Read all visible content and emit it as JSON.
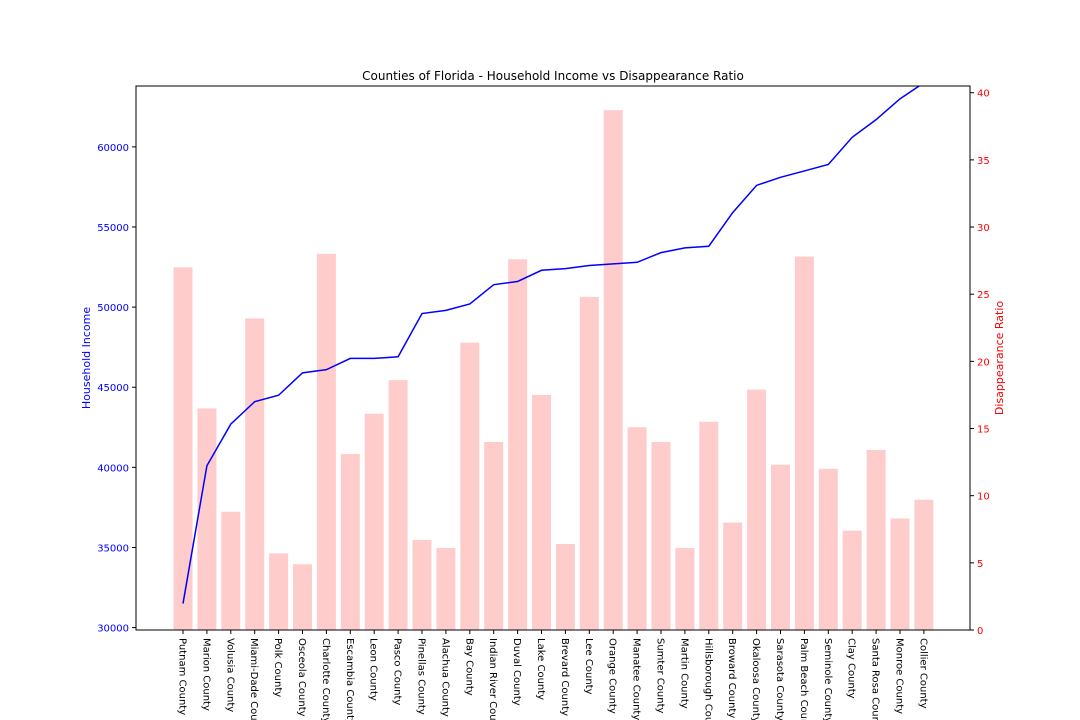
{
  "chart_data": {
    "type": "bar",
    "title": "Counties of Florida - Household Income vs Disappearance Ratio",
    "xlabel": "",
    "ylabel_left": "Household Income",
    "ylabel_right": "Disappearance Ratio",
    "left_color": "#0000ff",
    "right_color": "#ff0000",
    "bar_color": "#ffcccc",
    "line_color": "#0000ff",
    "grid": false,
    "ylim_left": [
      29850,
      63800
    ],
    "ylim_right": [
      0,
      40.5
    ],
    "yticks_left": [
      30000,
      35000,
      40000,
      45000,
      50000,
      55000,
      60000
    ],
    "yticks_right": [
      0,
      5,
      10,
      15,
      20,
      25,
      30,
      35,
      40
    ],
    "categories": [
      "Putnam County",
      "Marion County",
      "Volusia County",
      "Miami-Dade County",
      "Polk County",
      "Osceola County",
      "Charlotte County",
      "Escambia County",
      "Leon County",
      "Pasco County",
      "Pinellas County",
      "Alachua County",
      "Bay County",
      "Indian River County",
      "Duval County",
      "Lake County",
      "Brevard County",
      "Lee County",
      "Orange County",
      "Manatee County",
      "Sumter County",
      "Martin County",
      "Hillsborough County",
      "Broward County",
      "Okaloosa County",
      "Sarasota County",
      "Palm Beach County",
      "Seminole County",
      "Clay County",
      "Santa Rosa County",
      "Monroe County",
      "Collier County"
    ],
    "series": [
      {
        "name": "Household Income",
        "type": "line",
        "axis": "left",
        "values": [
          31500,
          40100,
          42700,
          44100,
          44500,
          45900,
          46100,
          46800,
          46800,
          46900,
          49600,
          49800,
          50200,
          51400,
          51600,
          52300,
          52400,
          52600,
          52700,
          52800,
          53400,
          53700,
          53800,
          55900,
          57600,
          58100,
          58500,
          58900,
          60600,
          61700,
          63000,
          64000
        ]
      },
      {
        "name": "Disappearance Ratio",
        "type": "bar",
        "axis": "right",
        "values": [
          27.0,
          16.5,
          8.8,
          23.2,
          5.7,
          4.9,
          28.0,
          13.1,
          16.1,
          18.6,
          6.7,
          6.1,
          21.4,
          14.0,
          27.6,
          17.5,
          6.4,
          24.8,
          38.7,
          15.1,
          14.0,
          6.1,
          15.5,
          8.0,
          17.9,
          12.3,
          27.8,
          12.0,
          7.4,
          13.4,
          8.3,
          9.7
        ]
      }
    ]
  }
}
